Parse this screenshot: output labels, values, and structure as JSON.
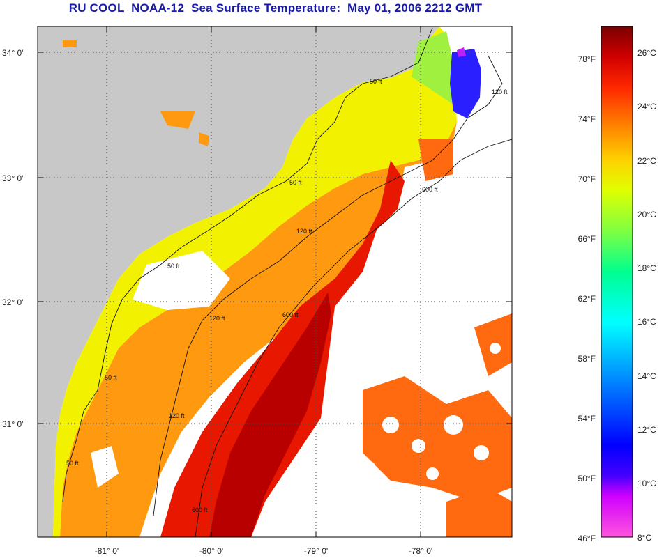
{
  "title": "RU COOL  NOAA-12  Sea Surface Temperature:  May 01, 2006 2212 GMT",
  "map": {
    "lat_labels": [
      "34° 0'",
      "33° 0'",
      "32° 0'",
      "31° 0'"
    ],
    "lon_labels": [
      "-81° 0'",
      "-80° 0'",
      "-79° 0'",
      "-78° 0'"
    ],
    "contour_labels": [
      "50 ft",
      "120 ft",
      "600 ft"
    ],
    "colors": {
      "land": "#c8c8c8",
      "cloud": "#ffffff"
    }
  },
  "colorbar": {
    "fahrenheit": [
      "78°F",
      "74°F",
      "70°F",
      "66°F",
      "62°F",
      "58°F",
      "54°F",
      "50°F",
      "46°F"
    ],
    "celsius": [
      "26°C",
      "24°C",
      "22°C",
      "20°C",
      "18°C",
      "16°C",
      "14°C",
      "12°C",
      "10°C",
      "8°C"
    ],
    "range_c": [
      8,
      27
    ]
  }
}
